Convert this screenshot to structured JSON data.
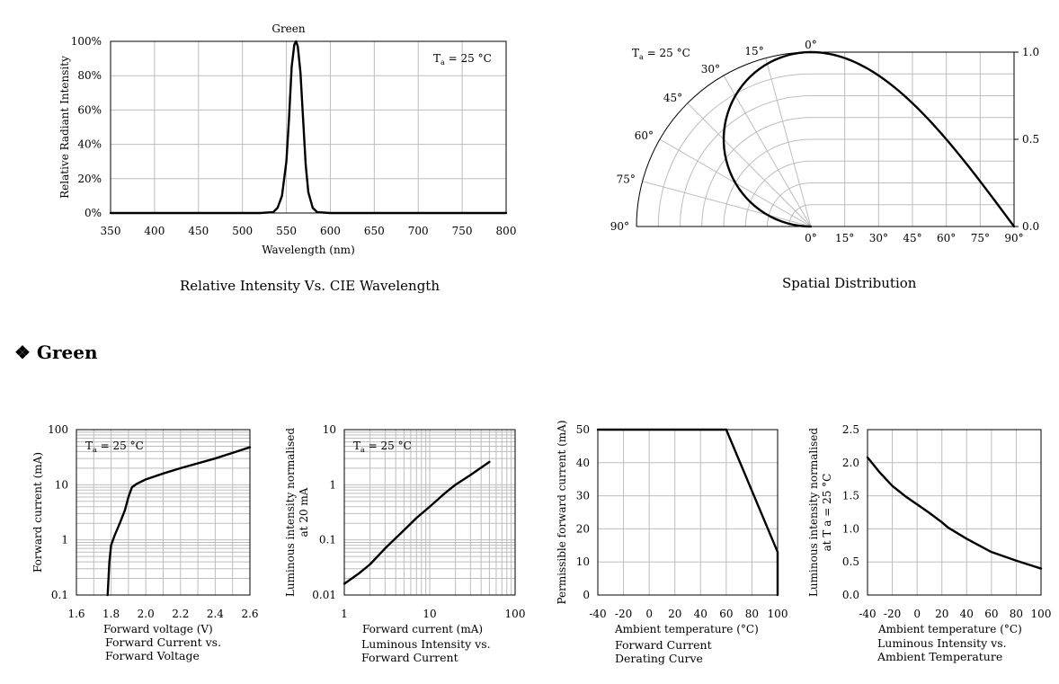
{
  "section_heading": "❖ Green",
  "chart_data": [
    {
      "type": "line",
      "title": "Relative Intensity Vs. CIE Wavelength",
      "series_label": "Green",
      "condition": "Ta = 25 °C",
      "xlabel": "Wavelength (nm)",
      "ylabel": "Relative Radiant Intensity",
      "xlim": [
        350,
        800
      ],
      "ylim": [
        0,
        100
      ],
      "xticks": [
        "350",
        "400",
        "450",
        "500",
        "550",
        "600",
        "650",
        "700",
        "750",
        "800"
      ],
      "yticks": [
        "0%",
        "20%",
        "40%",
        "60%",
        "80%",
        "100%"
      ],
      "grid": true,
      "x": [
        350,
        520,
        535,
        540,
        545,
        550,
        553,
        556,
        559,
        561,
        563,
        566,
        569,
        572,
        575,
        580,
        585,
        600,
        800
      ],
      "y": [
        0,
        0,
        0.5,
        3,
        10,
        30,
        55,
        85,
        98,
        100,
        97,
        82,
        55,
        28,
        12,
        3,
        0.5,
        0,
        0
      ]
    },
    {
      "type": "line",
      "title": "Spatial Distribution",
      "condition": "Ta = 25 °C",
      "polar_angle_labels": [
        "0°",
        "15°",
        "30°",
        "45°",
        "60°",
        "75°",
        "90°"
      ],
      "xticks": [
        "0°",
        "15°",
        "30°",
        "45°",
        "60°",
        "75°",
        "90°"
      ],
      "yticks": [
        "0.0",
        "0.5",
        "1.0"
      ],
      "ylim": [
        0,
        1
      ],
      "grid": true,
      "x": [
        0,
        15,
        30,
        45,
        60,
        75,
        90
      ],
      "y": [
        1.0,
        0.97,
        0.87,
        0.71,
        0.5,
        0.26,
        0.0
      ]
    },
    {
      "type": "line",
      "title": "Forward Current vs. Forward Voltage",
      "condition": "Ta = 25 °C",
      "xlabel": "Forward voltage (V)",
      "ylabel": "Forward current (mA)",
      "xlim": [
        1.6,
        2.6
      ],
      "ylim": [
        0.1,
        100
      ],
      "yscale": "log",
      "xticks": [
        "1.6",
        "1.8",
        "2.0",
        "2.2",
        "2.4",
        "2.6"
      ],
      "yticks": [
        "0.1",
        "1",
        "10",
        "100"
      ],
      "grid": true,
      "x": [
        1.78,
        1.785,
        1.79,
        1.8,
        1.82,
        1.85,
        1.88,
        1.9,
        1.92,
        1.95,
        2.0,
        2.1,
        2.2,
        2.4,
        2.6
      ],
      "y": [
        0.1,
        0.2,
        0.4,
        0.8,
        1.2,
        2.0,
        3.5,
        6.0,
        9.0,
        10.5,
        12.5,
        16.0,
        20.0,
        30.0,
        48.0
      ]
    },
    {
      "type": "line",
      "title": "Luminous Intensity vs. Forward Current",
      "condition": "Ta = 25 °C",
      "xlabel": "Forward current (mA)",
      "ylabel": "Luminous intensity normalised at 20 mA",
      "xlim": [
        1,
        100
      ],
      "ylim": [
        0.01,
        10
      ],
      "xscale": "log",
      "yscale": "log",
      "xticks": [
        "1",
        "10",
        "100"
      ],
      "yticks": [
        "0.01",
        "0.1",
        "1",
        "10"
      ],
      "grid": true,
      "x": [
        1,
        1.5,
        2,
        3,
        5,
        7,
        10,
        15,
        20,
        30,
        50
      ],
      "y": [
        0.016,
        0.025,
        0.036,
        0.07,
        0.15,
        0.25,
        0.4,
        0.7,
        1.0,
        1.5,
        2.6
      ]
    },
    {
      "type": "line",
      "title": "Forward Current Derating Curve",
      "xlabel": "Ambient temperature (°C)",
      "ylabel": "Permissible forward current (mA)",
      "xlim": [
        -40,
        100
      ],
      "ylim": [
        0,
        50
      ],
      "xticks": [
        "-40",
        "-20",
        "0",
        "20",
        "40",
        "60",
        "80",
        "100"
      ],
      "yticks": [
        "0",
        "10",
        "20",
        "30",
        "40",
        "50"
      ],
      "grid": true,
      "x": [
        -40,
        60,
        100,
        100
      ],
      "y": [
        50,
        50,
        13,
        0
      ]
    },
    {
      "type": "line",
      "title": "Luminous Intensity vs. Ambient Temperature",
      "xlabel": "Ambient temperature (°C)",
      "ylabel": "Luminous intensity normalised at Ta = 25 °C",
      "xlim": [
        -40,
        100
      ],
      "ylim": [
        0,
        2.5
      ],
      "xticks": [
        "-40",
        "-20",
        "0",
        "20",
        "40",
        "60",
        "80",
        "100"
      ],
      "yticks": [
        "0.0",
        "0.5",
        "1.0",
        "1.5",
        "2.0",
        "2.5"
      ],
      "grid": true,
      "x": [
        -40,
        -30,
        -20,
        -10,
        0,
        10,
        20,
        25,
        40,
        60,
        80,
        100
      ],
      "y": [
        2.08,
        1.85,
        1.65,
        1.5,
        1.37,
        1.24,
        1.1,
        1.02,
        0.85,
        0.65,
        0.52,
        0.4
      ]
    }
  ],
  "captions": {
    "c1": "Relative Intensity Vs. CIE Wavelength",
    "c2": "Spatial Distribution",
    "c3_line1": "Forward Current vs.",
    "c3_line2": "Forward Voltage",
    "c4_line1": "Luminous Intensity vs.",
    "c4_line2": "Forward Current",
    "c5_line1": "Forward Current",
    "c5_line2": "Derating  Curve",
    "c6_line1": "Luminous Intensity vs.",
    "c6_line2": "Ambient Temperature"
  }
}
